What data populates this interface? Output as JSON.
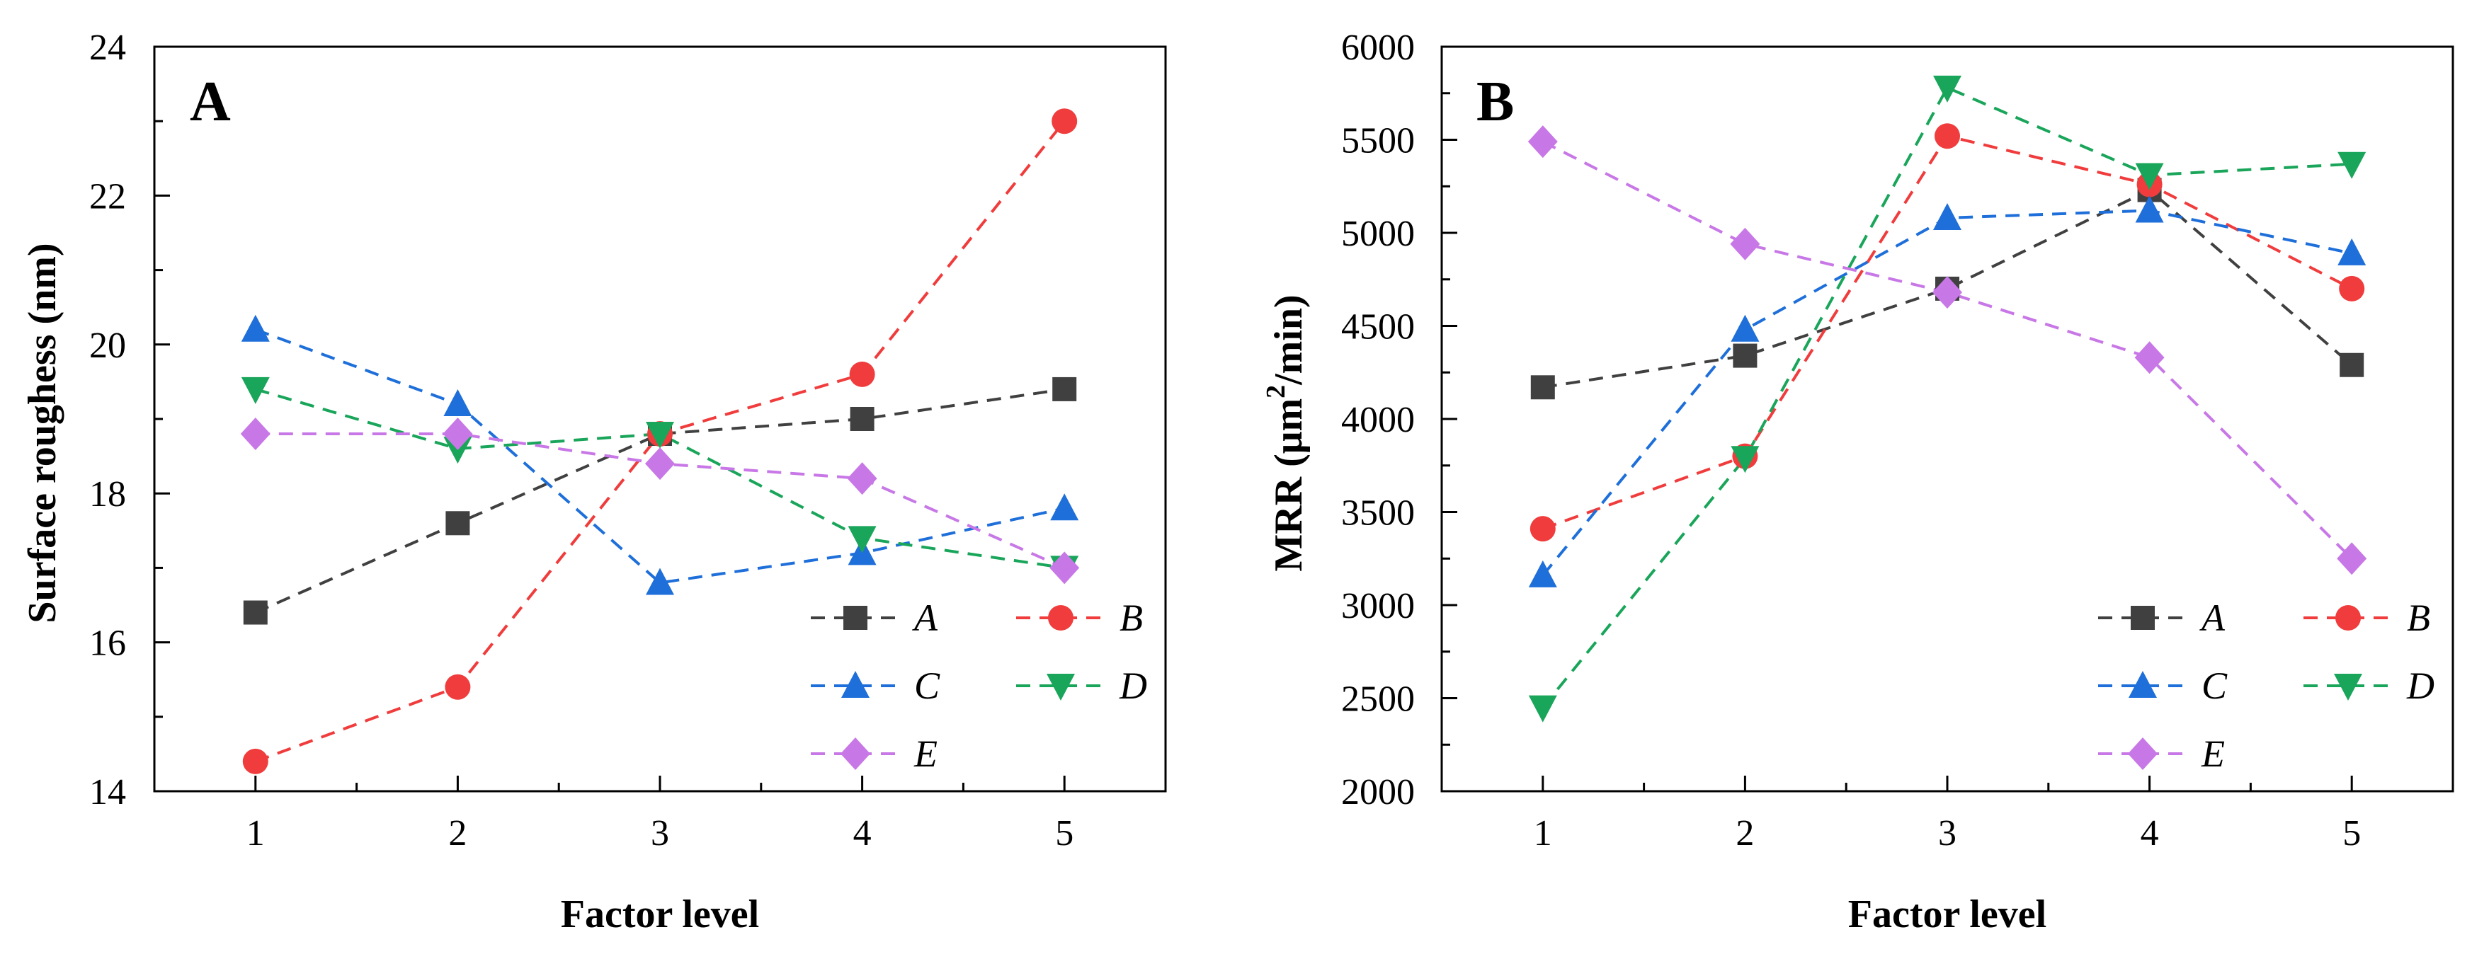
{
  "chart_data": [
    {
      "type": "line",
      "panel_label": "A",
      "title": "",
      "xlabel": "Factor level",
      "ylabel": "Surface roughess (nm)",
      "categories": [
        1,
        2,
        3,
        4,
        5
      ],
      "xlim": [
        0.5,
        5.5
      ],
      "ylim": [
        14,
        24
      ],
      "yticks": [
        14,
        16,
        18,
        20,
        22,
        24
      ],
      "xticks": [
        1,
        2,
        3,
        4,
        5
      ],
      "legend_position": "bottom-right",
      "series": [
        {
          "name": "A",
          "color": "#404040",
          "marker": "square",
          "values": [
            16.4,
            17.6,
            18.8,
            19.0,
            19.4
          ]
        },
        {
          "name": "B",
          "color": "#f03c3c",
          "marker": "circle",
          "values": [
            14.4,
            15.4,
            18.8,
            19.6,
            23.0
          ]
        },
        {
          "name": "C",
          "color": "#1e6fd9",
          "marker": "triangle-up",
          "values": [
            20.2,
            19.2,
            16.8,
            17.2,
            17.8
          ]
        },
        {
          "name": "D",
          "color": "#19a55a",
          "marker": "triangle-down",
          "values": [
            19.4,
            18.6,
            18.8,
            17.4,
            17.0
          ]
        },
        {
          "name": "E",
          "color": "#c878e6",
          "marker": "diamond",
          "values": [
            18.8,
            18.8,
            18.4,
            18.2,
            17.0
          ]
        }
      ]
    },
    {
      "type": "line",
      "panel_label": "B",
      "title": "",
      "xlabel": "Factor level",
      "ylabel_prefix": "MRR (μm",
      "ylabel_sup": "2",
      "ylabel_suffix": "/min)",
      "categories": [
        1,
        2,
        3,
        4,
        5
      ],
      "xlim": [
        0.5,
        5.5
      ],
      "ylim": [
        2000,
        6000
      ],
      "yticks": [
        2000,
        2500,
        3000,
        3500,
        4000,
        4500,
        5000,
        5500,
        6000
      ],
      "xticks": [
        1,
        2,
        3,
        4,
        5
      ],
      "legend_position": "bottom-right",
      "series": [
        {
          "name": "A",
          "color": "#404040",
          "marker": "square",
          "values": [
            4170,
            4340,
            4700,
            5230,
            4290
          ]
        },
        {
          "name": "B",
          "color": "#f03c3c",
          "marker": "circle",
          "values": [
            3410,
            3800,
            5520,
            5260,
            4700
          ]
        },
        {
          "name": "C",
          "color": "#1e6fd9",
          "marker": "triangle-up",
          "values": [
            3160,
            4480,
            5080,
            5120,
            4890
          ]
        },
        {
          "name": "D",
          "color": "#19a55a",
          "marker": "triangle-down",
          "values": [
            2450,
            3790,
            5780,
            5310,
            5370
          ]
        },
        {
          "name": "E",
          "color": "#c878e6",
          "marker": "diamond",
          "values": [
            5490,
            4940,
            4680,
            4330,
            3250
          ]
        }
      ]
    }
  ]
}
